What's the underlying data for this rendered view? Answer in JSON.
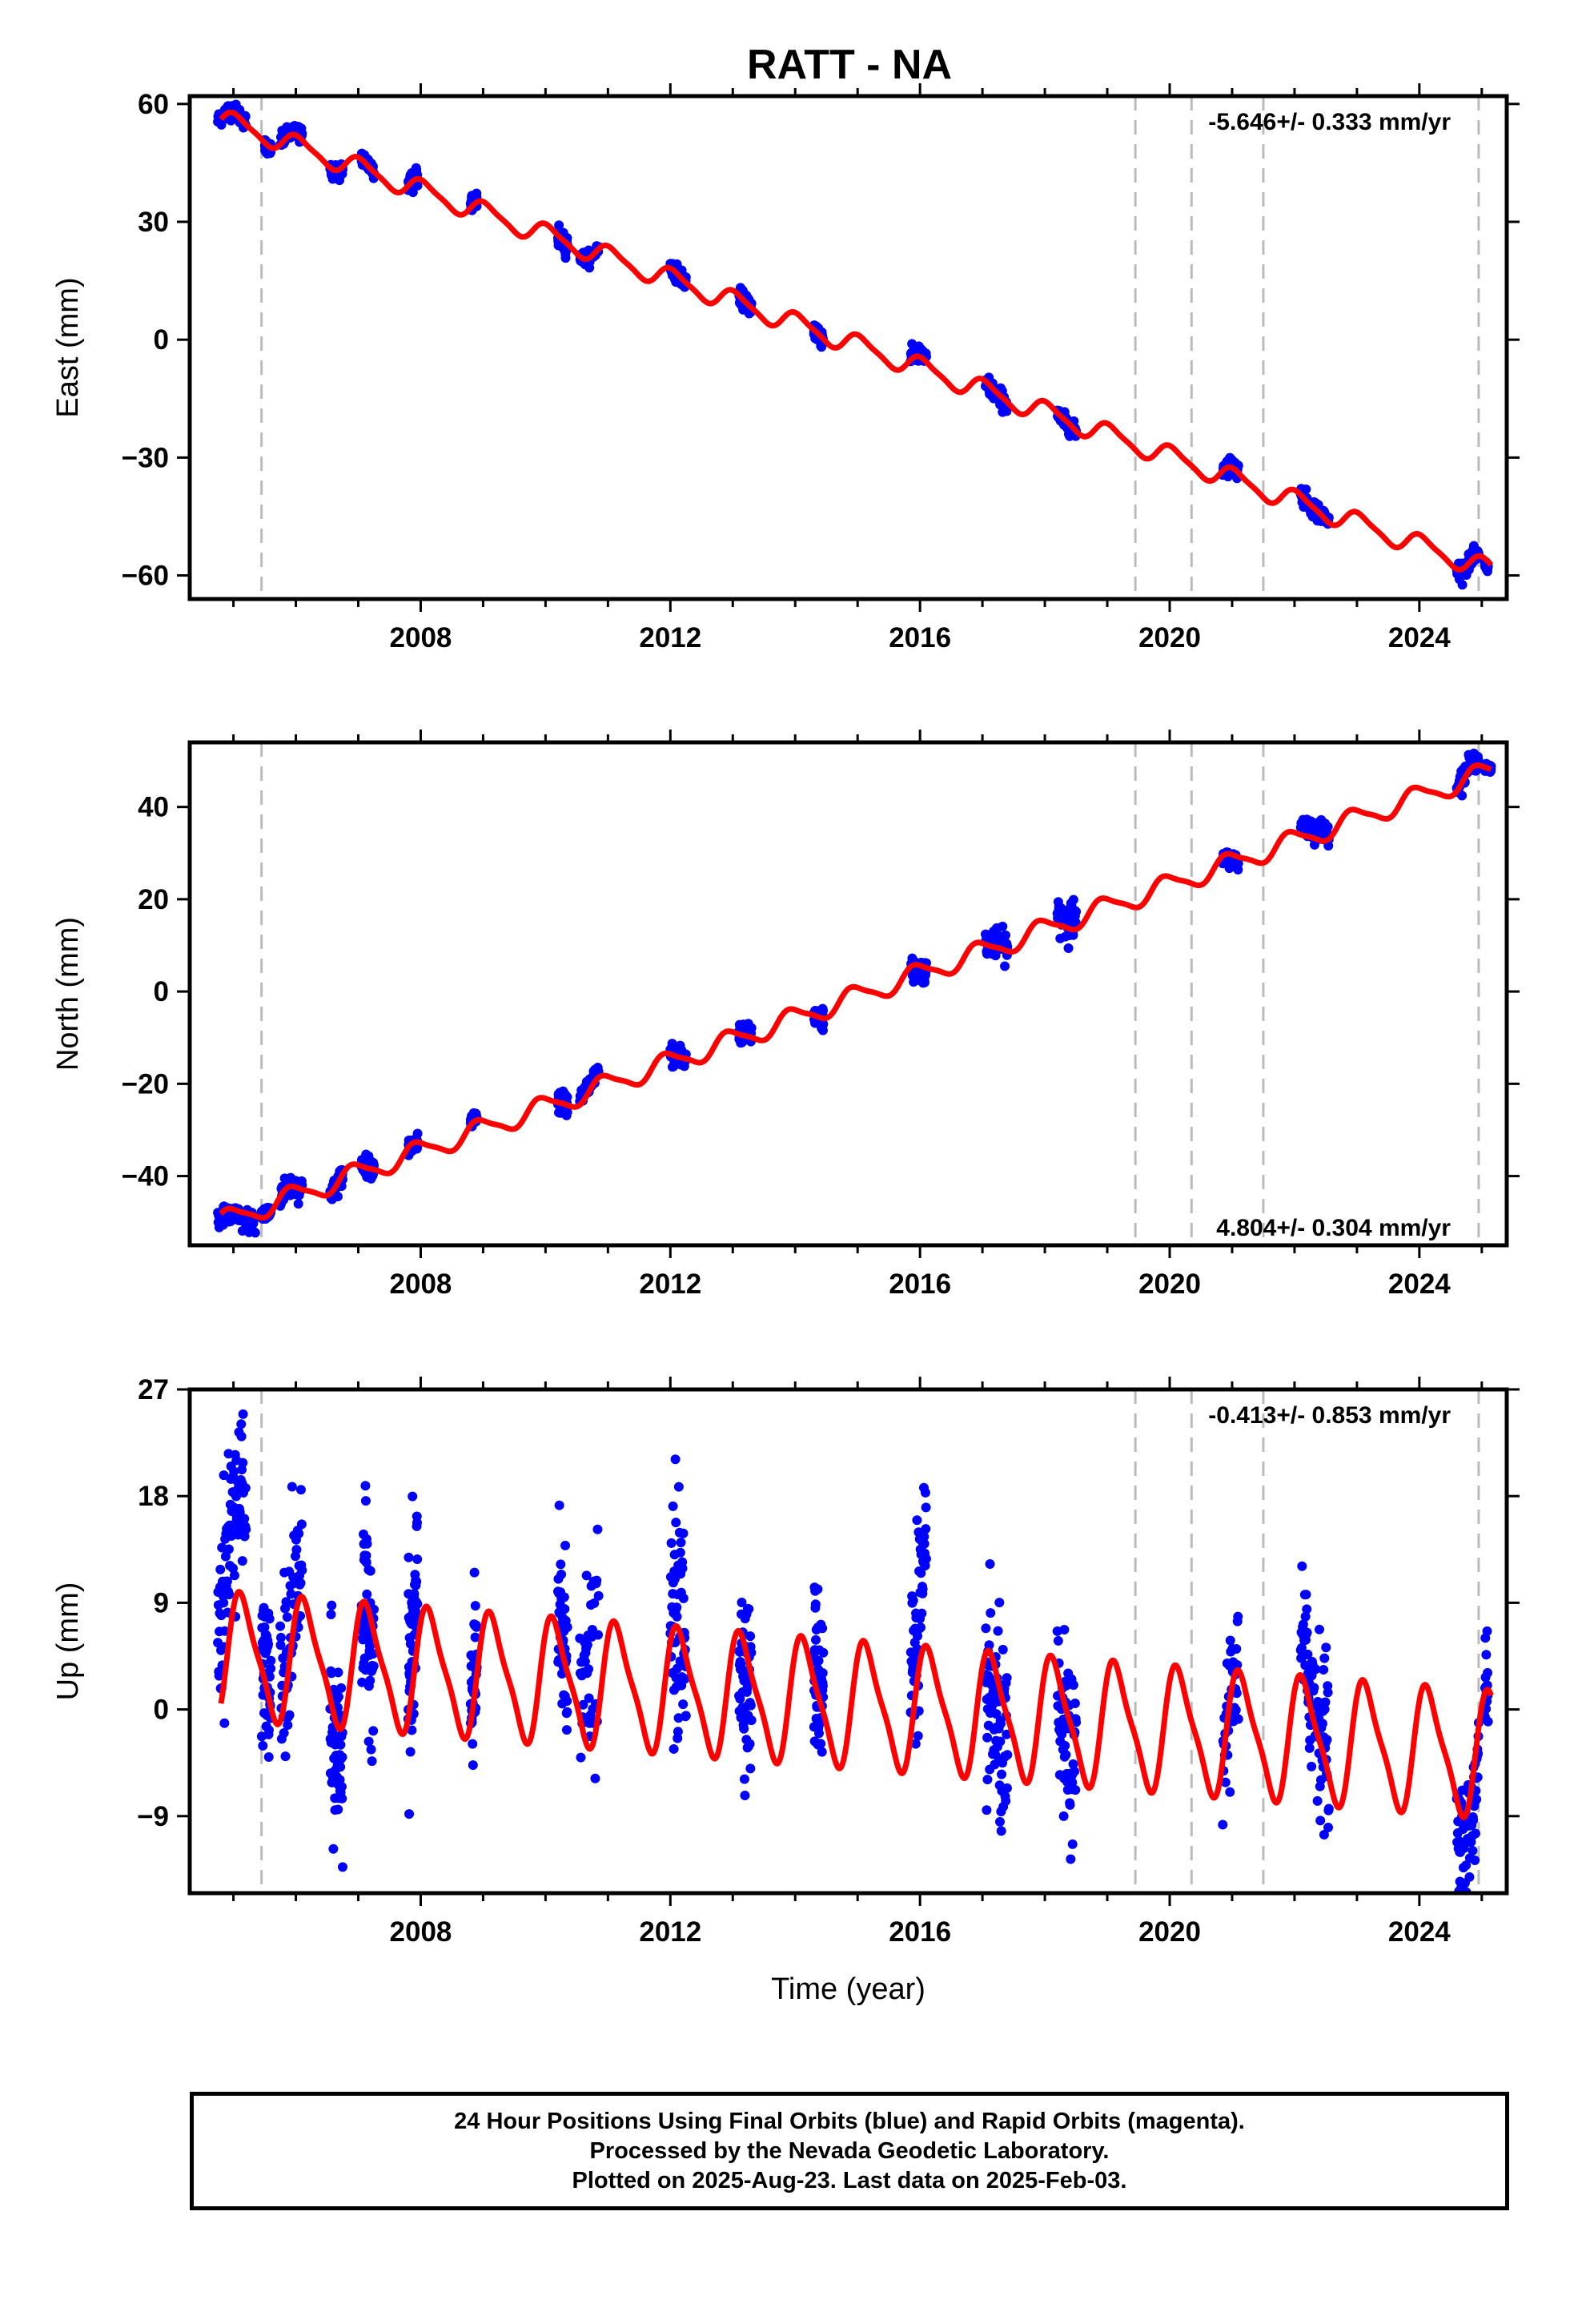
{
  "title": "RATT - NA",
  "footer": {
    "line1": "24 Hour Positions Using Final Orbits (blue) and Rapid Orbits (magenta).",
    "line2": "Processed by the Nevada Geodetic Laboratory.",
    "line3": "Plotted on 2025-Aug-23. Last data on 2025-Feb-03."
  },
  "colors": {
    "data": "#0000ff",
    "model": "#ff0000",
    "event_line": "#bbbbbb",
    "axis": "#000000"
  },
  "chart_data": [
    {
      "type": "scatter",
      "component": "east",
      "ylabel": "East (mm)",
      "xlabel": "",
      "rate_text": "-5.646+/- 0.333 mm/yr",
      "rate_position": "top-right",
      "xlim": [
        2004.3,
        2025.4
      ],
      "ylim": [
        -66,
        62
      ],
      "yticks": [
        -60,
        -30,
        0,
        30,
        60
      ],
      "xticks": [
        2008,
        2012,
        2016,
        2020,
        2024
      ],
      "model": {
        "slope_mm_per_yr": -5.646,
        "value_2005": 55,
        "annual_amplitude": 2.5,
        "annual_phase": 0.2,
        "semiannual_amplitude": 0.6
      },
      "vertical_lines": [
        2005.45,
        2019.45,
        2020.35,
        2021.5,
        2024.95
      ],
      "campaigns": [
        {
          "start": 2004.75,
          "end": 2005.2,
          "offset": 0.5,
          "spread": 1.0,
          "density": 80
        },
        {
          "start": 2005.5,
          "end": 2005.6,
          "offset": -0.5,
          "spread": 0.8,
          "density": 60
        },
        {
          "start": 2005.75,
          "end": 2006.1,
          "offset": 0.6,
          "spread": 1.0,
          "density": 60
        },
        {
          "start": 2006.55,
          "end": 2006.75,
          "offset": -0.5,
          "spread": 1.0,
          "density": 60
        },
        {
          "start": 2007.05,
          "end": 2007.25,
          "offset": 0.5,
          "spread": 1.0,
          "density": 60
        },
        {
          "start": 2007.8,
          "end": 2007.95,
          "offset": 0.6,
          "spread": 1.0,
          "density": 60
        },
        {
          "start": 2008.8,
          "end": 2008.9,
          "offset": 0.6,
          "spread": 0.8,
          "density": 60
        },
        {
          "start": 2010.2,
          "end": 2010.35,
          "offset": -0.5,
          "spread": 1.2,
          "density": 60
        },
        {
          "start": 2010.55,
          "end": 2010.85,
          "offset": 0.2,
          "spread": 0.8,
          "density": 50
        },
        {
          "start": 2012.0,
          "end": 2012.25,
          "offset": 0.2,
          "spread": 1.0,
          "density": 60
        },
        {
          "start": 2013.1,
          "end": 2013.3,
          "offset": 0.0,
          "spread": 1.0,
          "density": 60
        },
        {
          "start": 2014.3,
          "end": 2014.45,
          "offset": 0.0,
          "spread": 1.2,
          "density": 60
        },
        {
          "start": 2015.85,
          "end": 2016.1,
          "offset": 0.5,
          "spread": 1.0,
          "density": 60
        },
        {
          "start": 2017.05,
          "end": 2017.4,
          "offset": -0.5,
          "spread": 1.2,
          "density": 60
        },
        {
          "start": 2018.2,
          "end": 2018.5,
          "offset": -0.5,
          "spread": 1.0,
          "density": 60
        },
        {
          "start": 2020.85,
          "end": 2021.1,
          "offset": 0.5,
          "spread": 1.0,
          "density": 60
        },
        {
          "start": 2022.1,
          "end": 2022.55,
          "offset": 0.0,
          "spread": 1.2,
          "density": 60
        },
        {
          "start": 2024.6,
          "end": 2024.95,
          "offset": 0.0,
          "spread": 1.0,
          "density": 60
        },
        {
          "start": 2025.05,
          "end": 2025.1,
          "offset": -1.5,
          "spread": 0.5,
          "density": 40
        }
      ]
    },
    {
      "type": "scatter",
      "component": "north",
      "ylabel": "North (mm)",
      "xlabel": "",
      "rate_text": "4.804+/- 0.304 mm/yr",
      "rate_position": "bottom-right",
      "xlim": [
        2004.3,
        2025.4
      ],
      "ylim": [
        -55,
        54
      ],
      "yticks": [
        -40,
        -20,
        0,
        20,
        40
      ],
      "xticks": [
        2008,
        2012,
        2016,
        2020,
        2024
      ],
      "model": {
        "slope_mm_per_yr": 4.804,
        "value_2005": -49,
        "annual_amplitude": 2.2,
        "annual_phase": 0.3,
        "semiannual_amplitude": 0.5
      },
      "vertical_lines": [
        2005.45,
        2019.45,
        2020.35,
        2021.5,
        2024.95
      ],
      "campaigns": [
        {
          "start": 2004.75,
          "end": 2005.35,
          "offset": -1.5,
          "spread": 1.2,
          "density": 80
        },
        {
          "start": 2005.45,
          "end": 2005.6,
          "offset": 0.5,
          "spread": 0.8,
          "density": 60
        },
        {
          "start": 2005.75,
          "end": 2006.1,
          "offset": 0.0,
          "spread": 1.2,
          "density": 60
        },
        {
          "start": 2006.55,
          "end": 2006.75,
          "offset": 0.0,
          "spread": 1.0,
          "density": 60
        },
        {
          "start": 2007.05,
          "end": 2007.25,
          "offset": 0.5,
          "spread": 1.0,
          "density": 60
        },
        {
          "start": 2007.8,
          "end": 2007.95,
          "offset": -0.5,
          "spread": 1.0,
          "density": 60
        },
        {
          "start": 2008.8,
          "end": 2008.9,
          "offset": 0.5,
          "spread": 0.6,
          "density": 50
        },
        {
          "start": 2010.2,
          "end": 2010.35,
          "offset": 0.0,
          "spread": 1.2,
          "density": 60
        },
        {
          "start": 2010.55,
          "end": 2010.85,
          "offset": 1.5,
          "spread": 0.8,
          "density": 50
        },
        {
          "start": 2012.0,
          "end": 2012.25,
          "offset": 0.0,
          "spread": 1.2,
          "density": 60
        },
        {
          "start": 2013.1,
          "end": 2013.3,
          "offset": 0.5,
          "spread": 1.0,
          "density": 60
        },
        {
          "start": 2014.3,
          "end": 2014.45,
          "offset": 0.0,
          "spread": 1.0,
          "density": 60
        },
        {
          "start": 2015.85,
          "end": 2016.1,
          "offset": -1.0,
          "spread": 1.2,
          "density": 60
        },
        {
          "start": 2017.05,
          "end": 2017.4,
          "offset": 1.0,
          "spread": 1.5,
          "density": 60
        },
        {
          "start": 2018.2,
          "end": 2018.5,
          "offset": 2.0,
          "spread": 2.0,
          "density": 60
        },
        {
          "start": 2020.85,
          "end": 2021.1,
          "offset": -1.0,
          "spread": 0.8,
          "density": 50
        },
        {
          "start": 2022.1,
          "end": 2022.55,
          "offset": 2.0,
          "spread": 1.2,
          "density": 60
        },
        {
          "start": 2024.6,
          "end": 2024.95,
          "offset": 1.0,
          "spread": 1.0,
          "density": 60
        },
        {
          "start": 2025.05,
          "end": 2025.15,
          "offset": 0.0,
          "spread": 0.4,
          "density": 40
        }
      ]
    },
    {
      "type": "scatter",
      "component": "up",
      "ylabel": "Up (mm)",
      "xlabel": "Time (year)",
      "rate_text": "-0.413+/- 0.853 mm/yr",
      "rate_position": "top-right",
      "xlim": [
        2004.3,
        2025.4
      ],
      "ylim": [
        -15.5,
        27
      ],
      "yticks": [
        -9,
        0,
        9,
        18,
        27
      ],
      "xticks": [
        2008,
        2012,
        2016,
        2020,
        2024
      ],
      "model": {
        "slope_mm_per_yr": -0.413,
        "value_2005": 4.5,
        "annual_amplitude": 5.0,
        "annual_phase": 0.1,
        "semiannual_amplitude": 1.2
      },
      "vertical_lines": [
        2005.45,
        2019.45,
        2020.35,
        2021.5,
        2024.95
      ],
      "campaigns": [
        {
          "start": 2004.75,
          "end": 2005.2,
          "offset": 8.0,
          "spread": 4.0,
          "density": 90
        },
        {
          "start": 2005.45,
          "end": 2005.6,
          "offset": 1.0,
          "spread": 3.0,
          "density": 50
        },
        {
          "start": 2005.75,
          "end": 2006.1,
          "offset": 2.0,
          "spread": 4.0,
          "density": 60
        },
        {
          "start": 2006.55,
          "end": 2006.75,
          "offset": -2.0,
          "spread": 4.0,
          "density": 60
        },
        {
          "start": 2007.05,
          "end": 2007.25,
          "offset": -1.0,
          "spread": 4.0,
          "density": 60
        },
        {
          "start": 2007.8,
          "end": 2007.95,
          "offset": 3.0,
          "spread": 4.5,
          "density": 60
        },
        {
          "start": 2008.8,
          "end": 2008.9,
          "offset": 1.5,
          "spread": 3.0,
          "density": 40
        },
        {
          "start": 2010.2,
          "end": 2010.35,
          "offset": 1.0,
          "spread": 4.0,
          "density": 50
        },
        {
          "start": 2010.55,
          "end": 2010.85,
          "offset": 6.0,
          "spread": 4.0,
          "density": 40
        },
        {
          "start": 2012.0,
          "end": 2012.25,
          "offset": 1.0,
          "spread": 5.0,
          "density": 60
        },
        {
          "start": 2013.1,
          "end": 2013.3,
          "offset": -2.0,
          "spread": 3.5,
          "density": 60
        },
        {
          "start": 2014.3,
          "end": 2014.45,
          "offset": 1.5,
          "spread": 3.5,
          "density": 60
        },
        {
          "start": 2015.85,
          "end": 2016.1,
          "offset": 5.0,
          "spread": 4.0,
          "density": 60
        },
        {
          "start": 2017.05,
          "end": 2017.4,
          "offset": -4.0,
          "spread": 4.0,
          "density": 80
        },
        {
          "start": 2018.2,
          "end": 2018.5,
          "offset": -3.0,
          "spread": 3.5,
          "density": 60
        },
        {
          "start": 2020.85,
          "end": 2021.1,
          "offset": 0.0,
          "spread": 3.0,
          "density": 40
        },
        {
          "start": 2022.1,
          "end": 2022.55,
          "offset": 2.0,
          "spread": 3.5,
          "density": 90
        },
        {
          "start": 2024.6,
          "end": 2024.95,
          "offset": -2.5,
          "spread": 2.5,
          "density": 70
        },
        {
          "start": 2025.05,
          "end": 2025.1,
          "offset": 1.0,
          "spread": 2.0,
          "density": 15
        }
      ]
    }
  ]
}
